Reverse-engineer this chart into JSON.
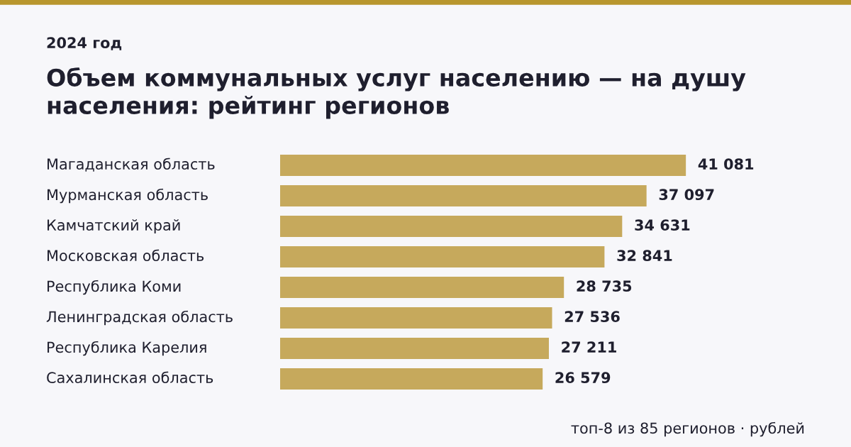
{
  "chart_data": {
    "type": "bar",
    "orientation": "horizontal",
    "title": "Объем коммунальных услуг населению — на душу населения: рейтинг регионов",
    "subtitle": "2024 год",
    "categories": [
      "Магаданская область",
      "Мурманская область",
      "Камчатский край",
      "Московская область",
      "Республика Коми",
      "Ленинградская область",
      "Республика Карелия",
      "Сахалинская область"
    ],
    "values": [
      41081,
      37097,
      34631,
      32841,
      28735,
      27536,
      27211,
      26579
    ],
    "value_labels": [
      "41 081",
      "37 097",
      "34 631",
      "32 841",
      "28 735",
      "27 536",
      "27 211",
      "26 579"
    ],
    "color": "#c6a95c",
    "annotations": [
      "топ-8 из 85 регионов · рублей"
    ]
  }
}
